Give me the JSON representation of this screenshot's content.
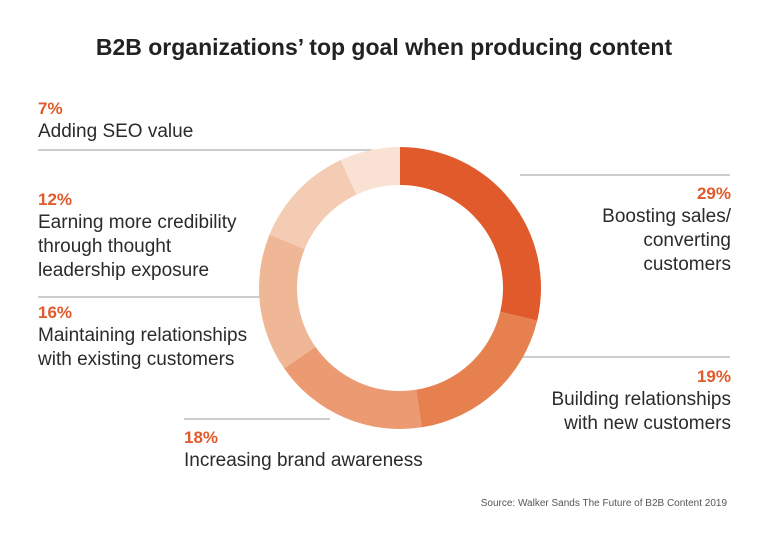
{
  "title": "B2B organizations’ top goal when producing content",
  "source": "Source: Walker Sands The Future of B2B Content 2019",
  "colors": {
    "accent": "#e05a2b",
    "leader_line": "#9a9a9a",
    "slices": [
      "#e05a2b",
      "#e6804f",
      "#eb9a72",
      "#f0b797",
      "#f3ccb3",
      "#f9e2d3"
    ]
  },
  "chart_data": {
    "type": "pie",
    "style": "donut",
    "title": "B2B organizations’ top goal when producing content",
    "categories": [
      "Boosting sales/ converting customers",
      "Building relationships with new customers",
      "Increasing brand awareness",
      "Maintaining relationships with existing customers",
      "Earning more credibility through thought leadership exposure",
      "Adding SEO value"
    ],
    "values": [
      29,
      19,
      18,
      16,
      12,
      7
    ],
    "unit": "%",
    "labels": [
      {
        "pct": "29%",
        "text": "Boosting sales/\nconverting\ncustomers"
      },
      {
        "pct": "19%",
        "text": "Building relationships\nwith new customers"
      },
      {
        "pct": "18%",
        "text": "Increasing brand awareness"
      },
      {
        "pct": "16%",
        "text": "Maintaining relationships\nwith existing customers"
      },
      {
        "pct": "12%",
        "text": "Earning more credibility\nthrough thought\nleadership exposure"
      },
      {
        "pct": "7%",
        "text": "Adding SEO value"
      }
    ]
  }
}
